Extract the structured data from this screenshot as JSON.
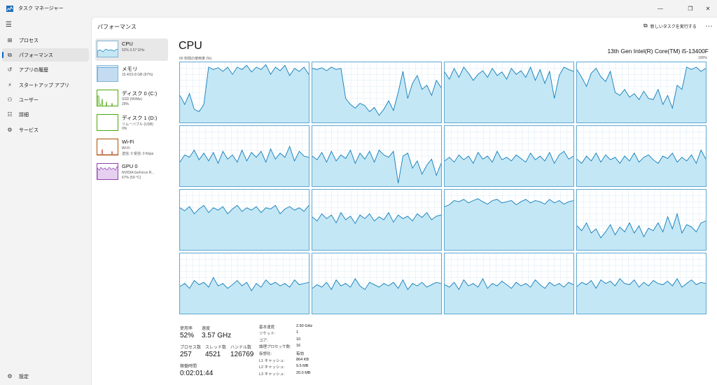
{
  "window": {
    "title": "タスク マネージャー",
    "minimize": "—",
    "maximize": "❐",
    "close": "✕"
  },
  "nav": {
    "menu_icon": "☰",
    "items": [
      {
        "label": "プロセス",
        "icon": "⊞"
      },
      {
        "label": "パフォーマンス",
        "icon": "⧉"
      },
      {
        "label": "アプリの履歴",
        "icon": "↺"
      },
      {
        "label": "スタートアップ アプリ",
        "icon": "⚡"
      },
      {
        "label": "ユーザー",
        "icon": "⚇"
      },
      {
        "label": "詳細",
        "icon": "☷"
      },
      {
        "label": "サービス",
        "icon": "⚙"
      }
    ],
    "settings": {
      "label": "設定",
      "icon": "⚙"
    }
  },
  "header": {
    "title": "パフォーマンス",
    "run_task": "新しいタスクを実行する",
    "run_task_icon": "⧉",
    "more": "…"
  },
  "devices": [
    {
      "name": "CPU",
      "line1": "52% 3.57 GHz",
      "line2": ""
    },
    {
      "name": "メモリ",
      "line1": "15.4/15.8 GB (97%)",
      "line2": ""
    },
    {
      "name": "ディスク 0 (C:)",
      "line1": "SSD (NVMe)",
      "line2": "29%"
    },
    {
      "name": "ディスク 1 (D:)",
      "line1": "リムーバブル (USB)",
      "line2": "0%"
    },
    {
      "name": "Wi-Fi",
      "line1": "Wi-Fi",
      "line2": "送信: 0 受信: 0 Kbps"
    },
    {
      "name": "GPU 0",
      "line1": "NVIDIA GeForce R...",
      "line2": "67% (59 °C)"
    }
  ],
  "cpu": {
    "heading": "CPU",
    "model": "13th Gen Intel(R) Core(TM) i5-13400F",
    "axis_left": "60 秒間の使用率 (%)",
    "axis_right": "100%"
  },
  "stats": {
    "usage_label": "使用率",
    "usage": "52%",
    "speed_label": "速度",
    "speed": "3.57 GHz",
    "processes_label": "プロセス数",
    "processes": "257",
    "threads_label": "スレッド数",
    "threads": "4521",
    "handles_label": "ハンドル数",
    "handles": "126769",
    "uptime_label": "稼働時間",
    "uptime": "0:02:01:44"
  },
  "specs": [
    {
      "label": "基本速度:",
      "value": "2.50 GHz"
    },
    {
      "label": "ソケット:",
      "value": "1"
    },
    {
      "label": "コア:",
      "value": "10"
    },
    {
      "label": "論理プロセッサ数:",
      "value": "16"
    },
    {
      "label": "仮想化:",
      "value": "有効"
    },
    {
      "label": "L1 キャッシュ:",
      "value": "864 KB"
    },
    {
      "label": "L2 キャッシュ:",
      "value": "9.5 MB"
    },
    {
      "label": "L3 キャッシュ:",
      "value": "20.0 MB"
    }
  ],
  "colors": {
    "cpu_line": "#117dbb",
    "cpu_fill": "#c4e7f5",
    "cpu_grid": "#d9eaf4",
    "disk": "#4da60c",
    "wifi": "#a74f01",
    "gpu": "#8e44ad"
  },
  "chart_data": {
    "type": "area",
    "title": "",
    "ylim": [
      0,
      100
    ],
    "series": [
      {
        "values": [
          45,
          30,
          48,
          22,
          18,
          30,
          92,
          88,
          91,
          85,
          92,
          80,
          92,
          88,
          95,
          84,
          92,
          88,
          96,
          80,
          92,
          86,
          95,
          78,
          90,
          85,
          92,
          80
        ]
      },
      {
        "values": [
          90,
          88,
          91,
          86,
          92,
          88,
          90,
          40,
          30,
          24,
          32,
          28,
          18,
          25,
          12,
          22,
          36,
          20,
          50,
          85,
          40,
          65,
          78,
          55,
          62,
          45,
          70,
          58
        ]
      },
      {
        "values": [
          84,
          72,
          90,
          75,
          92,
          82,
          70,
          80,
          86,
          75,
          90,
          78,
          84,
          72,
          90,
          80,
          86,
          75,
          92,
          70,
          88,
          65,
          85,
          40,
          78,
          92,
          88,
          85
        ]
      },
      {
        "values": [
          88,
          75,
          60,
          82,
          90,
          76,
          68,
          85,
          50,
          45,
          55,
          42,
          48,
          38,
          52,
          40,
          38,
          55,
          30,
          45,
          24,
          62,
          55,
          92,
          88,
          92,
          85,
          90
        ]
      },
      {
        "values": [
          40,
          52,
          48,
          60,
          44,
          55,
          42,
          56,
          38,
          58,
          45,
          52,
          40,
          60,
          42,
          56,
          48,
          58,
          40,
          62,
          45,
          55,
          48,
          66,
          42,
          58,
          50,
          48
        ]
      },
      {
        "values": [
          50,
          44,
          56,
          40,
          58,
          42,
          52,
          46,
          60,
          38,
          55,
          45,
          58,
          40,
          60,
          52,
          48,
          58,
          5,
          50,
          55,
          30,
          42,
          20,
          35,
          45,
          18,
          38
        ]
      },
      {
        "values": [
          42,
          48,
          40,
          52,
          44,
          50,
          38,
          56,
          45,
          50,
          40,
          58,
          44,
          48,
          42,
          52,
          46,
          40,
          55,
          44,
          50,
          42,
          56,
          38,
          52,
          58,
          45,
          50
        ]
      },
      {
        "values": [
          45,
          38,
          50,
          42,
          55,
          40,
          52,
          44,
          48,
          38,
          50,
          42,
          55,
          40,
          48,
          52,
          44,
          38,
          50,
          46,
          55,
          40,
          48,
          42,
          52,
          38,
          60,
          45
        ]
      },
      {
        "values": [
          70,
          65,
          72,
          60,
          68,
          74,
          62,
          70,
          66,
          72,
          60,
          68,
          74,
          64,
          70,
          66,
          72,
          62,
          70,
          68,
          74,
          60,
          68,
          72,
          66,
          70,
          64,
          74
        ]
      },
      {
        "values": [
          55,
          48,
          60,
          52,
          58,
          45,
          62,
          50,
          56,
          44,
          58,
          52,
          60,
          48,
          55,
          50,
          62,
          46,
          58,
          52,
          56,
          48,
          60,
          54,
          62,
          50,
          56,
          58
        ]
      },
      {
        "values": [
          72,
          75,
          82,
          80,
          84,
          78,
          82,
          85,
          80,
          76,
          82,
          84,
          78,
          80,
          82,
          75,
          80,
          84,
          78,
          82,
          80,
          76,
          84,
          78,
          82,
          76,
          80,
          82
        ]
      },
      {
        "values": [
          40,
          32,
          45,
          28,
          35,
          20,
          30,
          42,
          25,
          38,
          30,
          45,
          28,
          40,
          22,
          36,
          32,
          45,
          30,
          55,
          35,
          60,
          28,
          42,
          38,
          30,
          45,
          48
        ]
      },
      {
        "values": [
          45,
          50,
          42,
          55,
          48,
          52,
          44,
          60,
          46,
          50,
          42,
          48,
          55,
          46,
          52,
          38,
          50,
          44,
          56,
          48,
          52,
          46,
          50,
          44,
          56,
          48,
          50,
          52
        ]
      },
      {
        "values": [
          42,
          48,
          44,
          52,
          40,
          56,
          46,
          50,
          44,
          58,
          46,
          40,
          52,
          48,
          44,
          50,
          46,
          52,
          42,
          56,
          40,
          50,
          46,
          52,
          44,
          48,
          52,
          50
        ]
      },
      {
        "values": [
          48,
          44,
          52,
          40,
          56,
          46,
          50,
          44,
          58,
          42,
          50,
          46,
          54,
          48,
          42,
          52,
          46,
          50,
          44,
          56,
          48,
          42,
          52,
          46,
          50,
          44,
          52,
          48
        ]
      },
      {
        "values": [
          45,
          52,
          48,
          55,
          42,
          56,
          50,
          54,
          46,
          58,
          50,
          48,
          56,
          44,
          52,
          46,
          55,
          50,
          48,
          54,
          46,
          58,
          44,
          50,
          56,
          48,
          52,
          50
        ]
      }
    ]
  }
}
